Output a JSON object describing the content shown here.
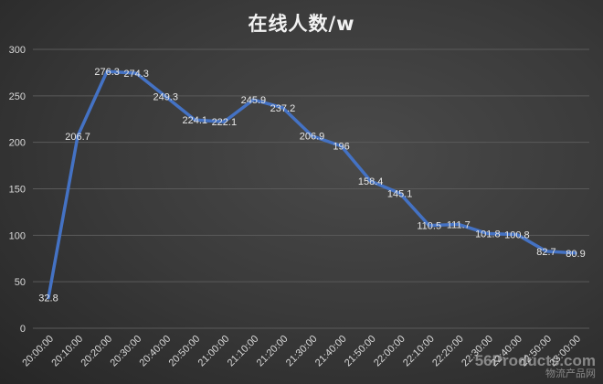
{
  "chart_data": {
    "type": "line",
    "title": "在线人数/w",
    "xlabel": "",
    "ylabel": "",
    "ylim": [
      0,
      300
    ],
    "yticks": [
      0,
      50,
      100,
      150,
      200,
      250,
      300
    ],
    "grid": true,
    "legend": null,
    "categories": [
      "20:00:00",
      "20:10:00",
      "20:20:00",
      "20:30:00",
      "20:40:00",
      "20:50:00",
      "21:00:00",
      "21:10:00",
      "21:20:00",
      "21:30:00",
      "21:40:00",
      "21:50:00",
      "22:00:00",
      "22:10:00",
      "22:20:00",
      "22:30:00",
      "22:40:00",
      "22:50:00",
      "23:00:00"
    ],
    "series": [
      {
        "name": "在线人数/w",
        "color": "#4472c4",
        "values": [
          32.8,
          206.7,
          276.3,
          274.3,
          249.3,
          224.1,
          222.1,
          245.9,
          237.2,
          206.9,
          196,
          158.4,
          145.1,
          110.5,
          111.7,
          101.8,
          100.8,
          82.7,
          80.9
        ],
        "labels": [
          "32.8",
          "206.7",
          "276.3",
          "274.3",
          "249.3",
          "224.1",
          "222.1",
          "245.9",
          "237.2",
          "206.9",
          "196",
          "158.4",
          "145.1",
          "110.5",
          "111.7",
          "101.8",
          "100.8",
          "82.7",
          "80.9"
        ]
      }
    ]
  },
  "colors": {
    "line": "#4472c4",
    "grid": "#5a5a5a",
    "text": "#d9d9d9",
    "title": "#f2f2f2"
  },
  "watermark": {
    "brand": "56Products",
    "domain": ".com",
    "subtitle": "物流产品网"
  }
}
